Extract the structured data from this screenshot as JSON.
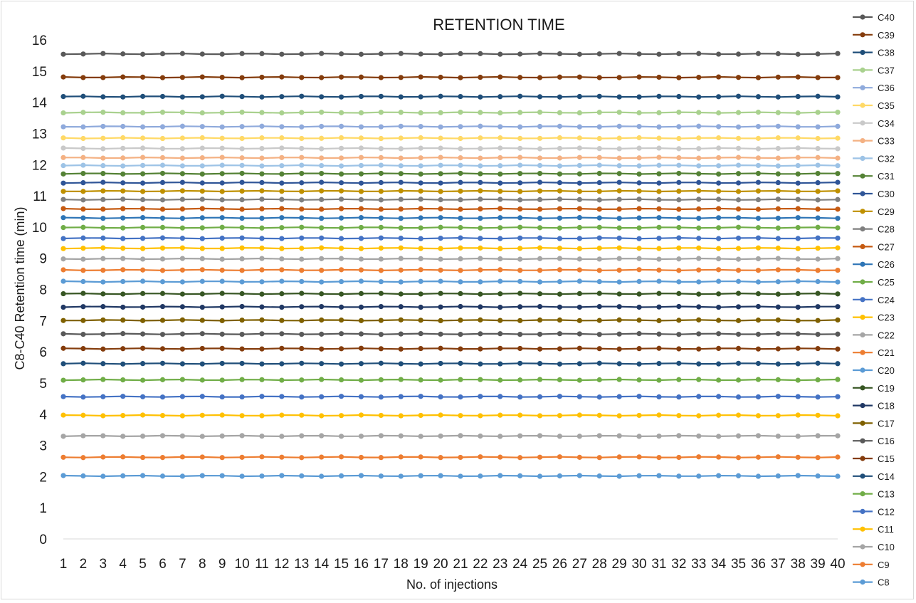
{
  "chart_data": {
    "type": "line",
    "title": "RETENTION TIME",
    "xlabel": "No. of injections",
    "ylabel": "C8-C40 Retention time (min)",
    "x": [
      1,
      2,
      3,
      4,
      5,
      6,
      7,
      8,
      9,
      10,
      11,
      12,
      13,
      14,
      15,
      16,
      17,
      18,
      19,
      20,
      21,
      22,
      23,
      24,
      25,
      26,
      27,
      28,
      29,
      30,
      31,
      32,
      33,
      34,
      35,
      36,
      37,
      38,
      39,
      40
    ],
    "xlim": [
      1,
      40
    ],
    "ylim": [
      0,
      16
    ],
    "yticks": [
      0,
      1,
      2,
      3,
      4,
      5,
      6,
      7,
      8,
      9,
      10,
      11,
      12,
      13,
      14,
      15,
      16
    ],
    "grid": false,
    "legend_position": "right",
    "series": [
      {
        "name": "C40",
        "color": "#595959",
        "base": 15.55
      },
      {
        "name": "C39",
        "color": "#843c0c",
        "base": 14.8
      },
      {
        "name": "C38",
        "color": "#1f4e79",
        "base": 14.18
      },
      {
        "name": "C37",
        "color": "#a9d18e",
        "base": 13.67
      },
      {
        "name": "C36",
        "color": "#8faadc",
        "base": 13.22
      },
      {
        "name": "C35",
        "color": "#ffd966",
        "base": 12.85
      },
      {
        "name": "C34",
        "color": "#c9c9c9",
        "base": 12.52
      },
      {
        "name": "C33",
        "color": "#f4b183",
        "base": 12.22
      },
      {
        "name": "C32",
        "color": "#9dc3e6",
        "base": 11.97
      },
      {
        "name": "C31",
        "color": "#548235",
        "base": 11.71
      },
      {
        "name": "C30",
        "color": "#2f5597",
        "base": 11.42
      },
      {
        "name": "C29",
        "color": "#bf9000",
        "base": 11.15
      },
      {
        "name": "C28",
        "color": "#7f7f7f",
        "base": 10.88
      },
      {
        "name": "C27",
        "color": "#c55a11",
        "base": 10.58
      },
      {
        "name": "C26",
        "color": "#2e75b6",
        "base": 10.29
      },
      {
        "name": "C25",
        "color": "#70ad47",
        "base": 9.98
      },
      {
        "name": "C24",
        "color": "#4472c4",
        "base": 9.64
      },
      {
        "name": "C23",
        "color": "#ffc000",
        "base": 9.32
      },
      {
        "name": "C22",
        "color": "#a5a5a5",
        "base": 8.98
      },
      {
        "name": "C21",
        "color": "#ed7d31",
        "base": 8.62
      },
      {
        "name": "C20",
        "color": "#5b9bd5",
        "base": 8.25
      },
      {
        "name": "C19",
        "color": "#375623",
        "base": 7.86
      },
      {
        "name": "C18",
        "color": "#203864",
        "base": 7.44
      },
      {
        "name": "C17",
        "color": "#7f6000",
        "base": 7.01
      },
      {
        "name": "C16",
        "color": "#595959",
        "base": 6.57
      },
      {
        "name": "C15",
        "color": "#843c0c",
        "base": 6.1
      },
      {
        "name": "C14",
        "color": "#1f4e79",
        "base": 5.62
      },
      {
        "name": "C13",
        "color": "#70ad47",
        "base": 5.1
      },
      {
        "name": "C12",
        "color": "#4472c4",
        "base": 4.56
      },
      {
        "name": "C11",
        "color": "#ffc000",
        "base": 3.96
      },
      {
        "name": "C10",
        "color": "#a5a5a5",
        "base": 3.3
      },
      {
        "name": "C9",
        "color": "#ed7d31",
        "base": 2.62
      },
      {
        "name": "C8",
        "color": "#5b9bd5",
        "base": 2.02
      }
    ]
  }
}
